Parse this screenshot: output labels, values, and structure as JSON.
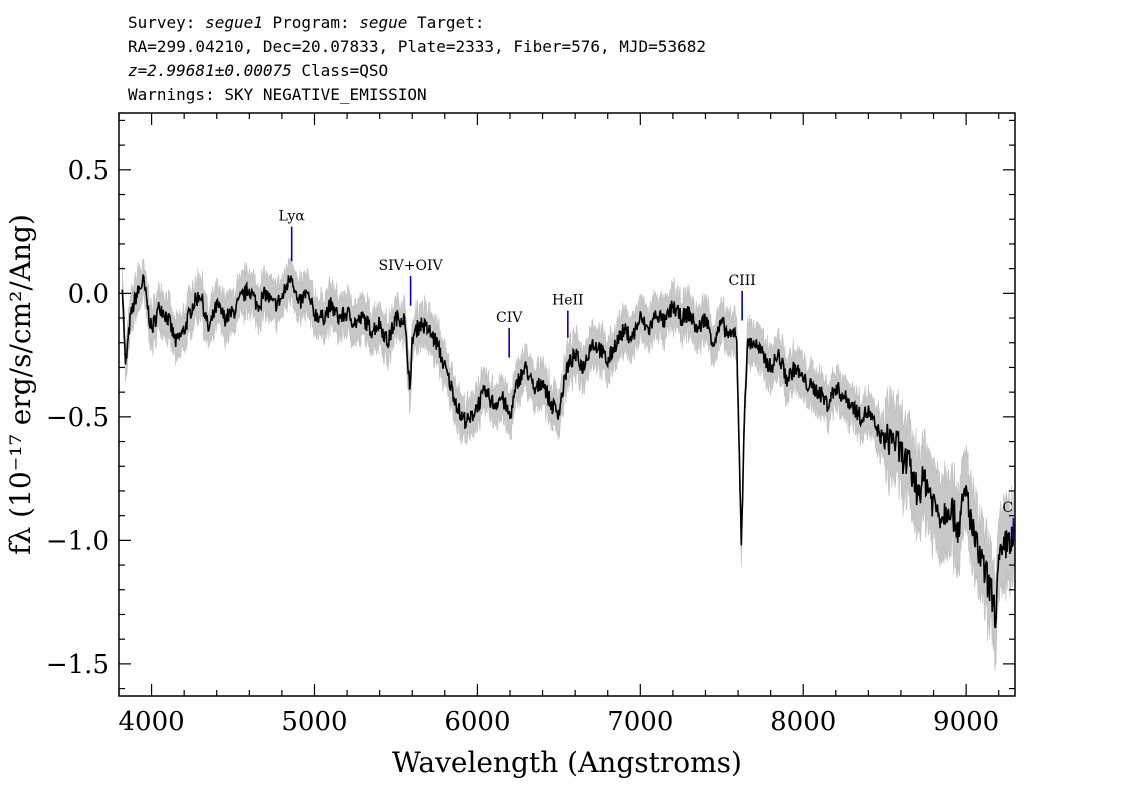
{
  "header": {
    "survey_label": "Survey:",
    "survey": "segue1",
    "program_label": "Program:",
    "program": "segue",
    "target_label": "Target:",
    "coords": "RA=299.04210, Dec=20.07833, Plate=2333, Fiber=576, MJD=53682",
    "redshift": "z=2.99681±0.00075",
    "class": "Class=QSO",
    "warnings": "Warnings: SKY NEGATIVE_EMISSION"
  },
  "chart_data": {
    "type": "line",
    "xlabel": "Wavelength (Angstroms)",
    "ylabel": "fλ (10⁻¹⁷ erg/s/cm²/Ang)",
    "xlim": [
      3800,
      9300
    ],
    "ylim": [
      -1.63,
      0.73
    ],
    "x_ticks": [
      4000,
      5000,
      6000,
      7000,
      8000,
      9000
    ],
    "x_tick_labels": [
      "4000",
      "5000",
      "6000",
      "7000",
      "8000",
      "9000"
    ],
    "y_ticks": [
      0.5,
      0.0,
      -0.5,
      -1.0,
      -1.5
    ],
    "y_tick_labels": [
      "0.5",
      "0.0",
      "−0.5",
      "−1.0",
      "−1.5"
    ],
    "grid": false,
    "series": [
      {
        "color": "#000000",
        "x": [
          3820,
          3840,
          3870,
          3900,
          3950,
          4000,
          4050,
          4100,
          4150,
          4200,
          4250,
          4300,
          4350,
          4400,
          4450,
          4500,
          4550,
          4600,
          4650,
          4700,
          4750,
          4800,
          4860,
          4900,
          4950,
          5000,
          5050,
          5100,
          5150,
          5200,
          5250,
          5300,
          5350,
          5400,
          5450,
          5500,
          5550,
          5590,
          5600,
          5650,
          5700,
          5750,
          5800,
          5850,
          5900,
          5950,
          6000,
          6050,
          6100,
          6150,
          6200,
          6250,
          6300,
          6350,
          6400,
          6450,
          6500,
          6550,
          6600,
          6650,
          6700,
          6750,
          6800,
          6850,
          6900,
          6950,
          7000,
          7050,
          7100,
          7150,
          7200,
          7250,
          7300,
          7350,
          7400,
          7450,
          7500,
          7550,
          7590,
          7610,
          7620,
          7640,
          7660,
          7700,
          7750,
          7800,
          7850,
          7900,
          7950,
          8000,
          8050,
          8100,
          8150,
          8200,
          8250,
          8300,
          8350,
          8400,
          8450,
          8500,
          8550,
          8600,
          8650,
          8700,
          8750,
          8800,
          8850,
          8900,
          8950,
          9000,
          9050,
          9100,
          9150,
          9180,
          9200,
          9230,
          9250,
          9300
        ],
        "values": [
          0.05,
          -0.3,
          -0.1,
          -0.02,
          0.05,
          -0.15,
          -0.05,
          -0.1,
          -0.2,
          -0.15,
          -0.05,
          0.0,
          -0.15,
          -0.05,
          -0.1,
          -0.08,
          -0.02,
          0.02,
          -0.05,
          0.0,
          -0.05,
          -0.02,
          0.08,
          -0.05,
          0.0,
          -0.08,
          -0.1,
          -0.05,
          -0.1,
          -0.08,
          -0.12,
          -0.1,
          -0.15,
          -0.12,
          -0.2,
          -0.1,
          -0.1,
          -0.4,
          -0.18,
          -0.12,
          -0.15,
          -0.2,
          -0.3,
          -0.4,
          -0.5,
          -0.52,
          -0.45,
          -0.4,
          -0.45,
          -0.42,
          -0.5,
          -0.35,
          -0.3,
          -0.4,
          -0.35,
          -0.45,
          -0.48,
          -0.3,
          -0.25,
          -0.3,
          -0.2,
          -0.22,
          -0.28,
          -0.2,
          -0.15,
          -0.18,
          -0.1,
          -0.15,
          -0.08,
          -0.12,
          -0.05,
          -0.1,
          -0.08,
          -0.15,
          -0.1,
          -0.2,
          -0.12,
          -0.18,
          -0.15,
          -0.7,
          -1.05,
          -0.45,
          -0.2,
          -0.2,
          -0.25,
          -0.3,
          -0.25,
          -0.35,
          -0.3,
          -0.35,
          -0.38,
          -0.4,
          -0.45,
          -0.38,
          -0.42,
          -0.45,
          -0.5,
          -0.48,
          -0.55,
          -0.6,
          -0.58,
          -0.65,
          -0.7,
          -0.8,
          -0.75,
          -0.85,
          -0.9,
          -0.85,
          -0.95,
          -0.8,
          -1.0,
          -1.1,
          -1.2,
          -1.3,
          -1.1,
          -1.05,
          -1.0,
          -1.0
        ]
      }
    ],
    "lines": [
      {
        "label": "Lyα",
        "x": 4860,
        "y_top": 0.27,
        "y_bottom": 0.13
      },
      {
        "label": "SIV+OIV",
        "x": 5590,
        "y_top": 0.07,
        "y_bottom": -0.05
      },
      {
        "label": "CIV",
        "x": 6195,
        "y_top": -0.14,
        "y_bottom": -0.26
      },
      {
        "label": "HeII",
        "x": 6555,
        "y_top": -0.07,
        "y_bottom": -0.18
      },
      {
        "label": "CIII",
        "x": 7625,
        "y_top": 0.01,
        "y_bottom": -0.11
      },
      {
        "label": "C",
        "x": 9290,
        "y_top": -0.91,
        "y_bottom": -1.0
      }
    ]
  }
}
